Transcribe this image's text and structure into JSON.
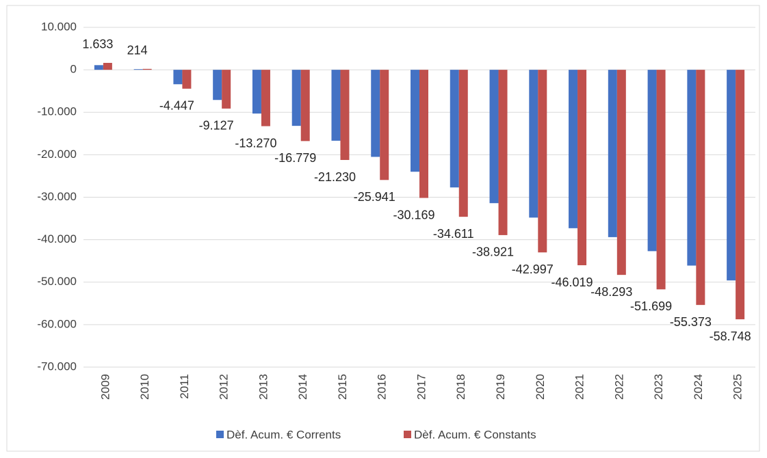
{
  "chart_data": {
    "type": "bar",
    "categories": [
      "2009",
      "2010",
      "2011",
      "2012",
      "2013",
      "2014",
      "2015",
      "2016",
      "2017",
      "2018",
      "2019",
      "2020",
      "2021",
      "2022",
      "2023",
      "2024",
      "2025"
    ],
    "series": [
      {
        "name": "Dèf. Acum. € Corrents",
        "color": "#4472c4",
        "values": [
          1100,
          150,
          -3400,
          -7100,
          -10300,
          -13200,
          -16700,
          -20500,
          -24000,
          -27700,
          -31400,
          -34800,
          -37300,
          -39400,
          -42700,
          -46100,
          -49600
        ]
      },
      {
        "name": "Dèf. Acum. € Constants",
        "color": "#c0504d",
        "values": [
          1633,
          214,
          -4447,
          -9127,
          -13270,
          -16779,
          -21230,
          -25941,
          -30169,
          -34611,
          -38921,
          -42997,
          -46019,
          -48293,
          -51699,
          -55373,
          -58748
        ],
        "value_labels": [
          "1.633",
          "214",
          "-4.447",
          "-9.127",
          "-13.270",
          "-16.779",
          "-21.230",
          "-25.941",
          "-30.169",
          "-34.611",
          "-38.921",
          "-42.997",
          "-46.019",
          "-48.293",
          "-51.699",
          "-55.373",
          "-58.748"
        ]
      }
    ],
    "ylim": [
      -70000,
      10000
    ],
    "yticks": [
      {
        "value": -70000,
        "label": "-70.000"
      },
      {
        "value": -60000,
        "label": "-60.000"
      },
      {
        "value": -50000,
        "label": "-50.000"
      },
      {
        "value": -40000,
        "label": "-40.000"
      },
      {
        "value": -30000,
        "label": "-30.000"
      },
      {
        "value": -20000,
        "label": "-20.000"
      },
      {
        "value": -10000,
        "label": "-10.000"
      },
      0,
      {
        "value": 10000,
        "label": "10.000"
      }
    ],
    "grid": true,
    "legend": "bottom"
  }
}
